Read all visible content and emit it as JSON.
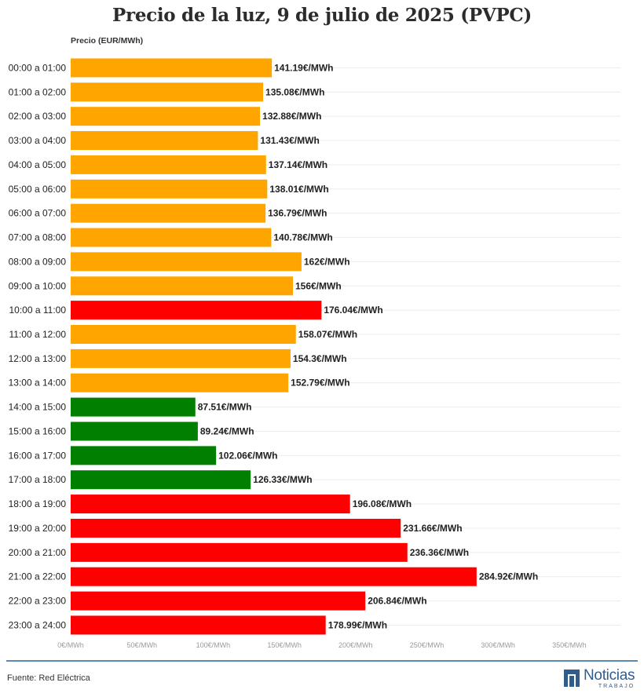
{
  "chart_data": {
    "type": "bar",
    "orientation": "horizontal",
    "title": "Precio de la luz, 9 de julio de 2025 (PVPC)",
    "value_axis_label": "Precio (EUR/MWh)",
    "categories": [
      "00:00 a 01:00",
      "01:00 a 02:00",
      "02:00 a 03:00",
      "03:00 a 04:00",
      "04:00 a 05:00",
      "05:00 a 06:00",
      "06:00 a 07:00",
      "07:00 a 08:00",
      "08:00 a 09:00",
      "09:00 a 10:00",
      "10:00 a 11:00",
      "11:00 a 12:00",
      "12:00 a 13:00",
      "13:00 a 14:00",
      "14:00 a 15:00",
      "15:00 a 16:00",
      "16:00 a 17:00",
      "17:00 a 18:00",
      "18:00 a 19:00",
      "19:00 a 20:00",
      "20:00 a 21:00",
      "21:00 a 22:00",
      "22:00 a 23:00",
      "23:00 a 24:00"
    ],
    "values": [
      141.19,
      135.08,
      132.88,
      131.43,
      137.14,
      138.01,
      136.79,
      140.78,
      162,
      156,
      176.04,
      158.07,
      154.3,
      152.79,
      87.51,
      89.24,
      102.06,
      126.33,
      196.08,
      231.66,
      236.36,
      284.92,
      206.84,
      178.99
    ],
    "value_labels": [
      "141.19€/MWh",
      "135.08€/MWh",
      "132.88€/MWh",
      "131.43€/MWh",
      "137.14€/MWh",
      "138.01€/MWh",
      "136.79€/MWh",
      "140.78€/MWh",
      "162€/MWh",
      "156€/MWh",
      "176.04€/MWh",
      "158.07€/MWh",
      "154.3€/MWh",
      "152.79€/MWh",
      "87.51€/MWh",
      "89.24€/MWh",
      "102.06€/MWh",
      "126.33€/MWh",
      "196.08€/MWh",
      "231.66€/MWh",
      "236.36€/MWh",
      "284.92€/MWh",
      "206.84€/MWh",
      "178.99€/MWh"
    ],
    "bar_colors": [
      "#ffa500",
      "#ffa500",
      "#ffa500",
      "#ffa500",
      "#ffa500",
      "#ffa500",
      "#ffa500",
      "#ffa500",
      "#ffa500",
      "#ffa500",
      "#ff0000",
      "#ffa500",
      "#ffa500",
      "#ffa500",
      "#007f00",
      "#007f00",
      "#007f00",
      "#007f00",
      "#ff0000",
      "#ff0000",
      "#ff0000",
      "#ff0000",
      "#ff0000",
      "#ff0000"
    ],
    "xlim": [
      0,
      350
    ],
    "x_ticks": [
      0,
      50,
      100,
      150,
      200,
      250,
      300,
      350
    ],
    "x_tick_labels": [
      "0€/MWh",
      "50€/MWh",
      "100€/MWh",
      "150€/MWh",
      "200€/MWh",
      "250€/MWh",
      "300€/MWh",
      "350€/MWh"
    ],
    "grid": "horizontal",
    "legend": "none"
  },
  "footer": {
    "source": "Fuente: Red Eléctrica",
    "brand_name": "Noticias",
    "brand_sub": "TRABAJO",
    "brand_color": "#2f5e8e"
  }
}
